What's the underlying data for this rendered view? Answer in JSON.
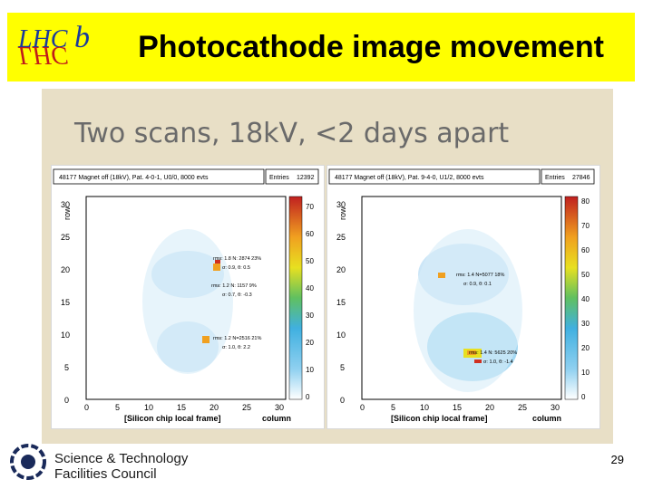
{
  "header": {
    "title": "Photocathode image movement",
    "logo_text": "LHCb"
  },
  "slide": {
    "subtitle": "Two scans, 18kV, <2 days apart"
  },
  "plots": [
    {
      "stats_title": "48177 Magnet off (18kV), Pat. 4-0-1, U0/0, 8000 evts",
      "entries_label": "Entries",
      "entries_value": "12392",
      "y_label": "row",
      "x_label": "[Silicon chip local frame]",
      "x_unit": "column",
      "x_ticks": [
        "0",
        "5",
        "10",
        "15",
        "20",
        "25",
        "30"
      ],
      "y_ticks": [
        "0",
        "5",
        "10",
        "15",
        "20",
        "25",
        "30"
      ],
      "z_ticks": [
        "0",
        "10",
        "20",
        "30",
        "40",
        "50",
        "60",
        "70"
      ],
      "annotations": [
        {
          "line1": "rms: 1.8 N: 2874 23%",
          "line2": "σ: 0.9, θ: 0.5"
        },
        {
          "line1": "rms: 1.2 N: 1157 9%",
          "line2": "σ: 0.7, θ: -0.3"
        },
        {
          "line1": "rms: 1.2 N=2516 21%",
          "line2": "σ: 1.0, θ: 2.2"
        }
      ]
    },
    {
      "stats_title": "48177 Magnet off (18kV), Pat. 9-4-0, U1/2, 8000 evts",
      "entries_label": "Entries",
      "entries_value": "27846",
      "y_label": "row",
      "x_label": "[Silicon chip local frame]",
      "x_unit": "column",
      "x_ticks": [
        "0",
        "5",
        "10",
        "15",
        "20",
        "25",
        "30"
      ],
      "y_ticks": [
        "0",
        "5",
        "10",
        "15",
        "20",
        "25",
        "30"
      ],
      "z_ticks": [
        "0",
        "10",
        "20",
        "30",
        "40",
        "50",
        "60",
        "70",
        "80"
      ],
      "annotations": [
        {
          "line1": "rms: 1.4 N=5077 18%",
          "line2": "σ: 0.9, θ: 0.1"
        },
        {
          "line1": "rms: 1.4 N: 5625 20%",
          "line2": "σ: 1.0, θ: -1.4"
        }
      ]
    }
  ],
  "footer": {
    "org_line1": "Science & Technology",
    "org_line2": "Facilities Council",
    "page_number": "29"
  }
}
